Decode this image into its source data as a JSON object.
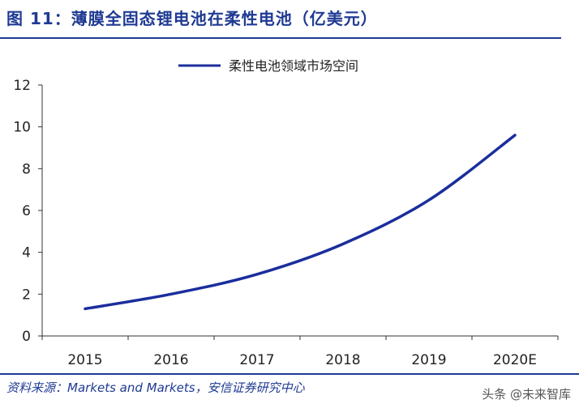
{
  "figure": {
    "title": "图 11：薄膜全固态锂电池在柔性电池（亿美元）",
    "source": "资料来源：Markets and Markets，安信证券研究中心",
    "watermark": "头条 @未来智库"
  },
  "colors": {
    "accent": "#1f3a93",
    "line": "#1a2e9c",
    "text": "#222222"
  },
  "chart_data": {
    "type": "line",
    "title": "",
    "xlabel": "",
    "ylabel": "",
    "categories": [
      "2015",
      "2016",
      "2017",
      "2018",
      "2019",
      "2020E"
    ],
    "series": [
      {
        "name": "柔性电池领域市场空间",
        "values": [
          1.3,
          2.0,
          2.95,
          4.4,
          6.5,
          9.6
        ]
      }
    ],
    "ylim": [
      0,
      12
    ],
    "yticks": [
      0,
      2,
      4,
      6,
      8,
      10,
      12
    ],
    "grid": false,
    "legend": "top-center"
  }
}
